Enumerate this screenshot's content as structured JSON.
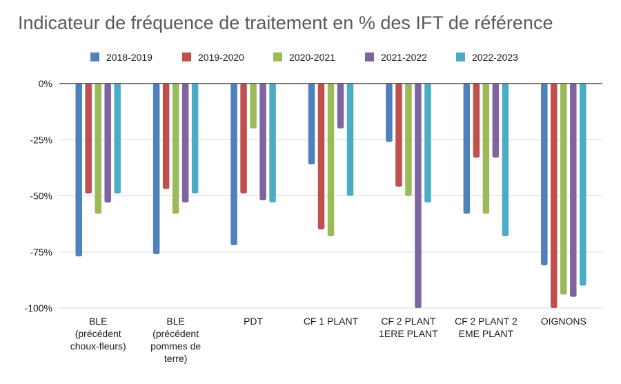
{
  "chart_data": {
    "type": "bar",
    "title": "Indicateur de fréquence de traitement en % des IFT de référence",
    "categories": [
      [
        "BLE",
        "(précédent",
        "choux-fleurs)"
      ],
      [
        "BLE",
        "(précédent",
        "pommes de",
        "terre)"
      ],
      [
        "PDT"
      ],
      [
        "CF 1 PLANT"
      ],
      [
        "CF 2 PLANT",
        "1ERE PLANT"
      ],
      [
        "CF 2 PLANT 2",
        "EME PLANT"
      ],
      [
        "OIGNONS"
      ]
    ],
    "series": [
      {
        "name": "2018-2019",
        "color": "#4f81bd",
        "values": [
          -77,
          -76,
          -72,
          -36,
          -26,
          -58,
          -81
        ]
      },
      {
        "name": "2019-2020",
        "color": "#c0504d",
        "values": [
          -49,
          -47,
          -49,
          -65,
          -46,
          -33,
          -100
        ]
      },
      {
        "name": "2020-2021",
        "color": "#9bbb59",
        "values": [
          -58,
          -58,
          -20,
          -68,
          -50,
          -58,
          -94
        ]
      },
      {
        "name": "2021-2022",
        "color": "#8064a2",
        "values": [
          -53,
          -53,
          -52,
          -20,
          -100,
          -33,
          -95
        ]
      },
      {
        "name": "2022-2023",
        "color": "#4bacc6",
        "values": [
          -49,
          -49,
          -53,
          -50,
          -53,
          -68,
          -90
        ]
      }
    ],
    "ylim": [
      -100,
      0
    ],
    "yticks": [
      "0%",
      "-25%",
      "-50%",
      "-75%",
      "-100%"
    ],
    "ytick_values": [
      0,
      -25,
      -50,
      -75,
      -100
    ],
    "grid": true,
    "legend_position": "top"
  }
}
